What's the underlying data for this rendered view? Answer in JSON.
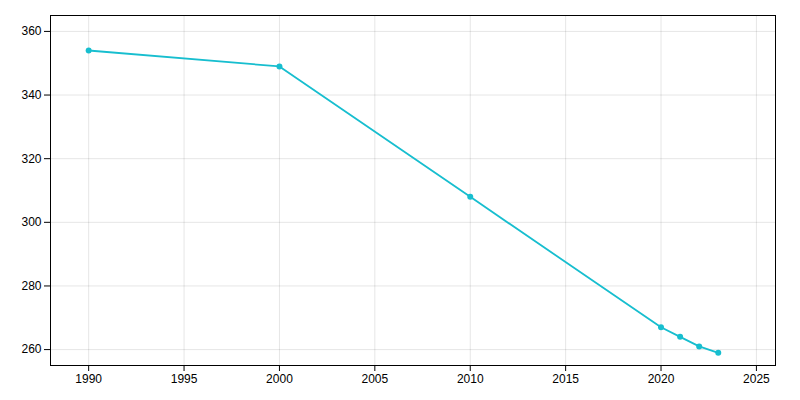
{
  "chart_data": {
    "type": "line",
    "x": [
      1990,
      2000,
      2010,
      2020,
      2021,
      2022,
      2023
    ],
    "values": [
      354,
      349,
      308,
      267,
      264,
      261,
      259
    ],
    "color": "#17becf",
    "marker": "circle",
    "xlim": [
      1988,
      2026
    ],
    "ylim": [
      255,
      365
    ],
    "xticks": [
      1990,
      1995,
      2000,
      2005,
      2010,
      2015,
      2020,
      2025
    ],
    "yticks": [
      260,
      280,
      300,
      320,
      340,
      360
    ],
    "grid": true
  }
}
